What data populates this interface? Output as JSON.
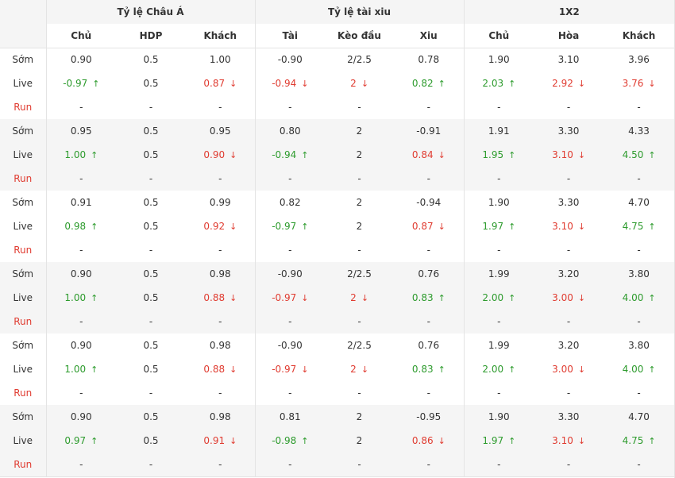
{
  "headers": {
    "groups": [
      "Tỷ lệ Châu Á",
      "Tỷ lệ tài xiu",
      "1X2"
    ],
    "columns": [
      "Chủ",
      "HDP",
      "Khách",
      "Tài",
      "Kèo đầu",
      "Xiu",
      "Chủ",
      "Hòa",
      "Khách"
    ]
  },
  "row_labels": {
    "early": "Sớm",
    "live": "Live",
    "run": "Run"
  },
  "arrows": {
    "up": "↑",
    "down": "↓"
  },
  "colors": {
    "up": "#2d9b2d",
    "down": "#e03c31",
    "run_label": "#e03c31",
    "band": "#f5f5f5",
    "text": "#333333"
  },
  "blocks": [
    {
      "early": [
        "0.90",
        "0.5",
        "1.00",
        "-0.90",
        "2/2.5",
        "0.78",
        "1.90",
        "3.10",
        "3.96"
      ],
      "live": [
        {
          "v": "-0.97",
          "t": "up"
        },
        {
          "v": "0.5",
          "t": ""
        },
        {
          "v": "0.87",
          "t": "down"
        },
        {
          "v": "-0.94",
          "t": "down"
        },
        {
          "v": "2",
          "t": "down"
        },
        {
          "v": "0.82",
          "t": "up"
        },
        {
          "v": "2.03",
          "t": "up"
        },
        {
          "v": "2.92",
          "t": "down"
        },
        {
          "v": "3.76",
          "t": "down"
        }
      ],
      "run": [
        "-",
        "-",
        "-",
        "-",
        "-",
        "-",
        "-",
        "-",
        "-"
      ]
    },
    {
      "early": [
        "0.95",
        "0.5",
        "0.95",
        "0.80",
        "2",
        "-0.91",
        "1.91",
        "3.30",
        "4.33"
      ],
      "live": [
        {
          "v": "1.00",
          "t": "up"
        },
        {
          "v": "0.5",
          "t": ""
        },
        {
          "v": "0.90",
          "t": "down"
        },
        {
          "v": "-0.94",
          "t": "up"
        },
        {
          "v": "2",
          "t": ""
        },
        {
          "v": "0.84",
          "t": "down"
        },
        {
          "v": "1.95",
          "t": "up"
        },
        {
          "v": "3.10",
          "t": "down"
        },
        {
          "v": "4.50",
          "t": "up"
        }
      ],
      "run": [
        "-",
        "-",
        "-",
        "-",
        "-",
        "-",
        "-",
        "-",
        "-"
      ]
    },
    {
      "early": [
        "0.91",
        "0.5",
        "0.99",
        "0.82",
        "2",
        "-0.94",
        "1.90",
        "3.30",
        "4.70"
      ],
      "live": [
        {
          "v": "0.98",
          "t": "up"
        },
        {
          "v": "0.5",
          "t": ""
        },
        {
          "v": "0.92",
          "t": "down"
        },
        {
          "v": "-0.97",
          "t": "up"
        },
        {
          "v": "2",
          "t": ""
        },
        {
          "v": "0.87",
          "t": "down"
        },
        {
          "v": "1.97",
          "t": "up"
        },
        {
          "v": "3.10",
          "t": "down"
        },
        {
          "v": "4.75",
          "t": "up"
        }
      ],
      "run": [
        "-",
        "-",
        "-",
        "-",
        "-",
        "-",
        "-",
        "-",
        "-"
      ]
    },
    {
      "early": [
        "0.90",
        "0.5",
        "0.98",
        "-0.90",
        "2/2.5",
        "0.76",
        "1.99",
        "3.20",
        "3.80"
      ],
      "live": [
        {
          "v": "1.00",
          "t": "up"
        },
        {
          "v": "0.5",
          "t": ""
        },
        {
          "v": "0.88",
          "t": "down"
        },
        {
          "v": "-0.97",
          "t": "down"
        },
        {
          "v": "2",
          "t": "down"
        },
        {
          "v": "0.83",
          "t": "up"
        },
        {
          "v": "2.00",
          "t": "up"
        },
        {
          "v": "3.00",
          "t": "down"
        },
        {
          "v": "4.00",
          "t": "up"
        }
      ],
      "run": [
        "-",
        "-",
        "-",
        "-",
        "-",
        "-",
        "-",
        "-",
        "-"
      ]
    },
    {
      "early": [
        "0.90",
        "0.5",
        "0.98",
        "-0.90",
        "2/2.5",
        "0.76",
        "1.99",
        "3.20",
        "3.80"
      ],
      "live": [
        {
          "v": "1.00",
          "t": "up"
        },
        {
          "v": "0.5",
          "t": ""
        },
        {
          "v": "0.88",
          "t": "down"
        },
        {
          "v": "-0.97",
          "t": "down"
        },
        {
          "v": "2",
          "t": "down"
        },
        {
          "v": "0.83",
          "t": "up"
        },
        {
          "v": "2.00",
          "t": "up"
        },
        {
          "v": "3.00",
          "t": "down"
        },
        {
          "v": "4.00",
          "t": "up"
        }
      ],
      "run": [
        "-",
        "-",
        "-",
        "-",
        "-",
        "-",
        "-",
        "-",
        "-"
      ]
    },
    {
      "early": [
        "0.90",
        "0.5",
        "0.98",
        "0.81",
        "2",
        "-0.95",
        "1.90",
        "3.30",
        "4.70"
      ],
      "live": [
        {
          "v": "0.97",
          "t": "up"
        },
        {
          "v": "0.5",
          "t": ""
        },
        {
          "v": "0.91",
          "t": "down"
        },
        {
          "v": "-0.98",
          "t": "up"
        },
        {
          "v": "2",
          "t": ""
        },
        {
          "v": "0.86",
          "t": "down"
        },
        {
          "v": "1.97",
          "t": "up"
        },
        {
          "v": "3.10",
          "t": "down"
        },
        {
          "v": "4.75",
          "t": "up"
        }
      ],
      "run": [
        "-",
        "-",
        "-",
        "-",
        "-",
        "-",
        "-",
        "-",
        "-"
      ]
    }
  ]
}
